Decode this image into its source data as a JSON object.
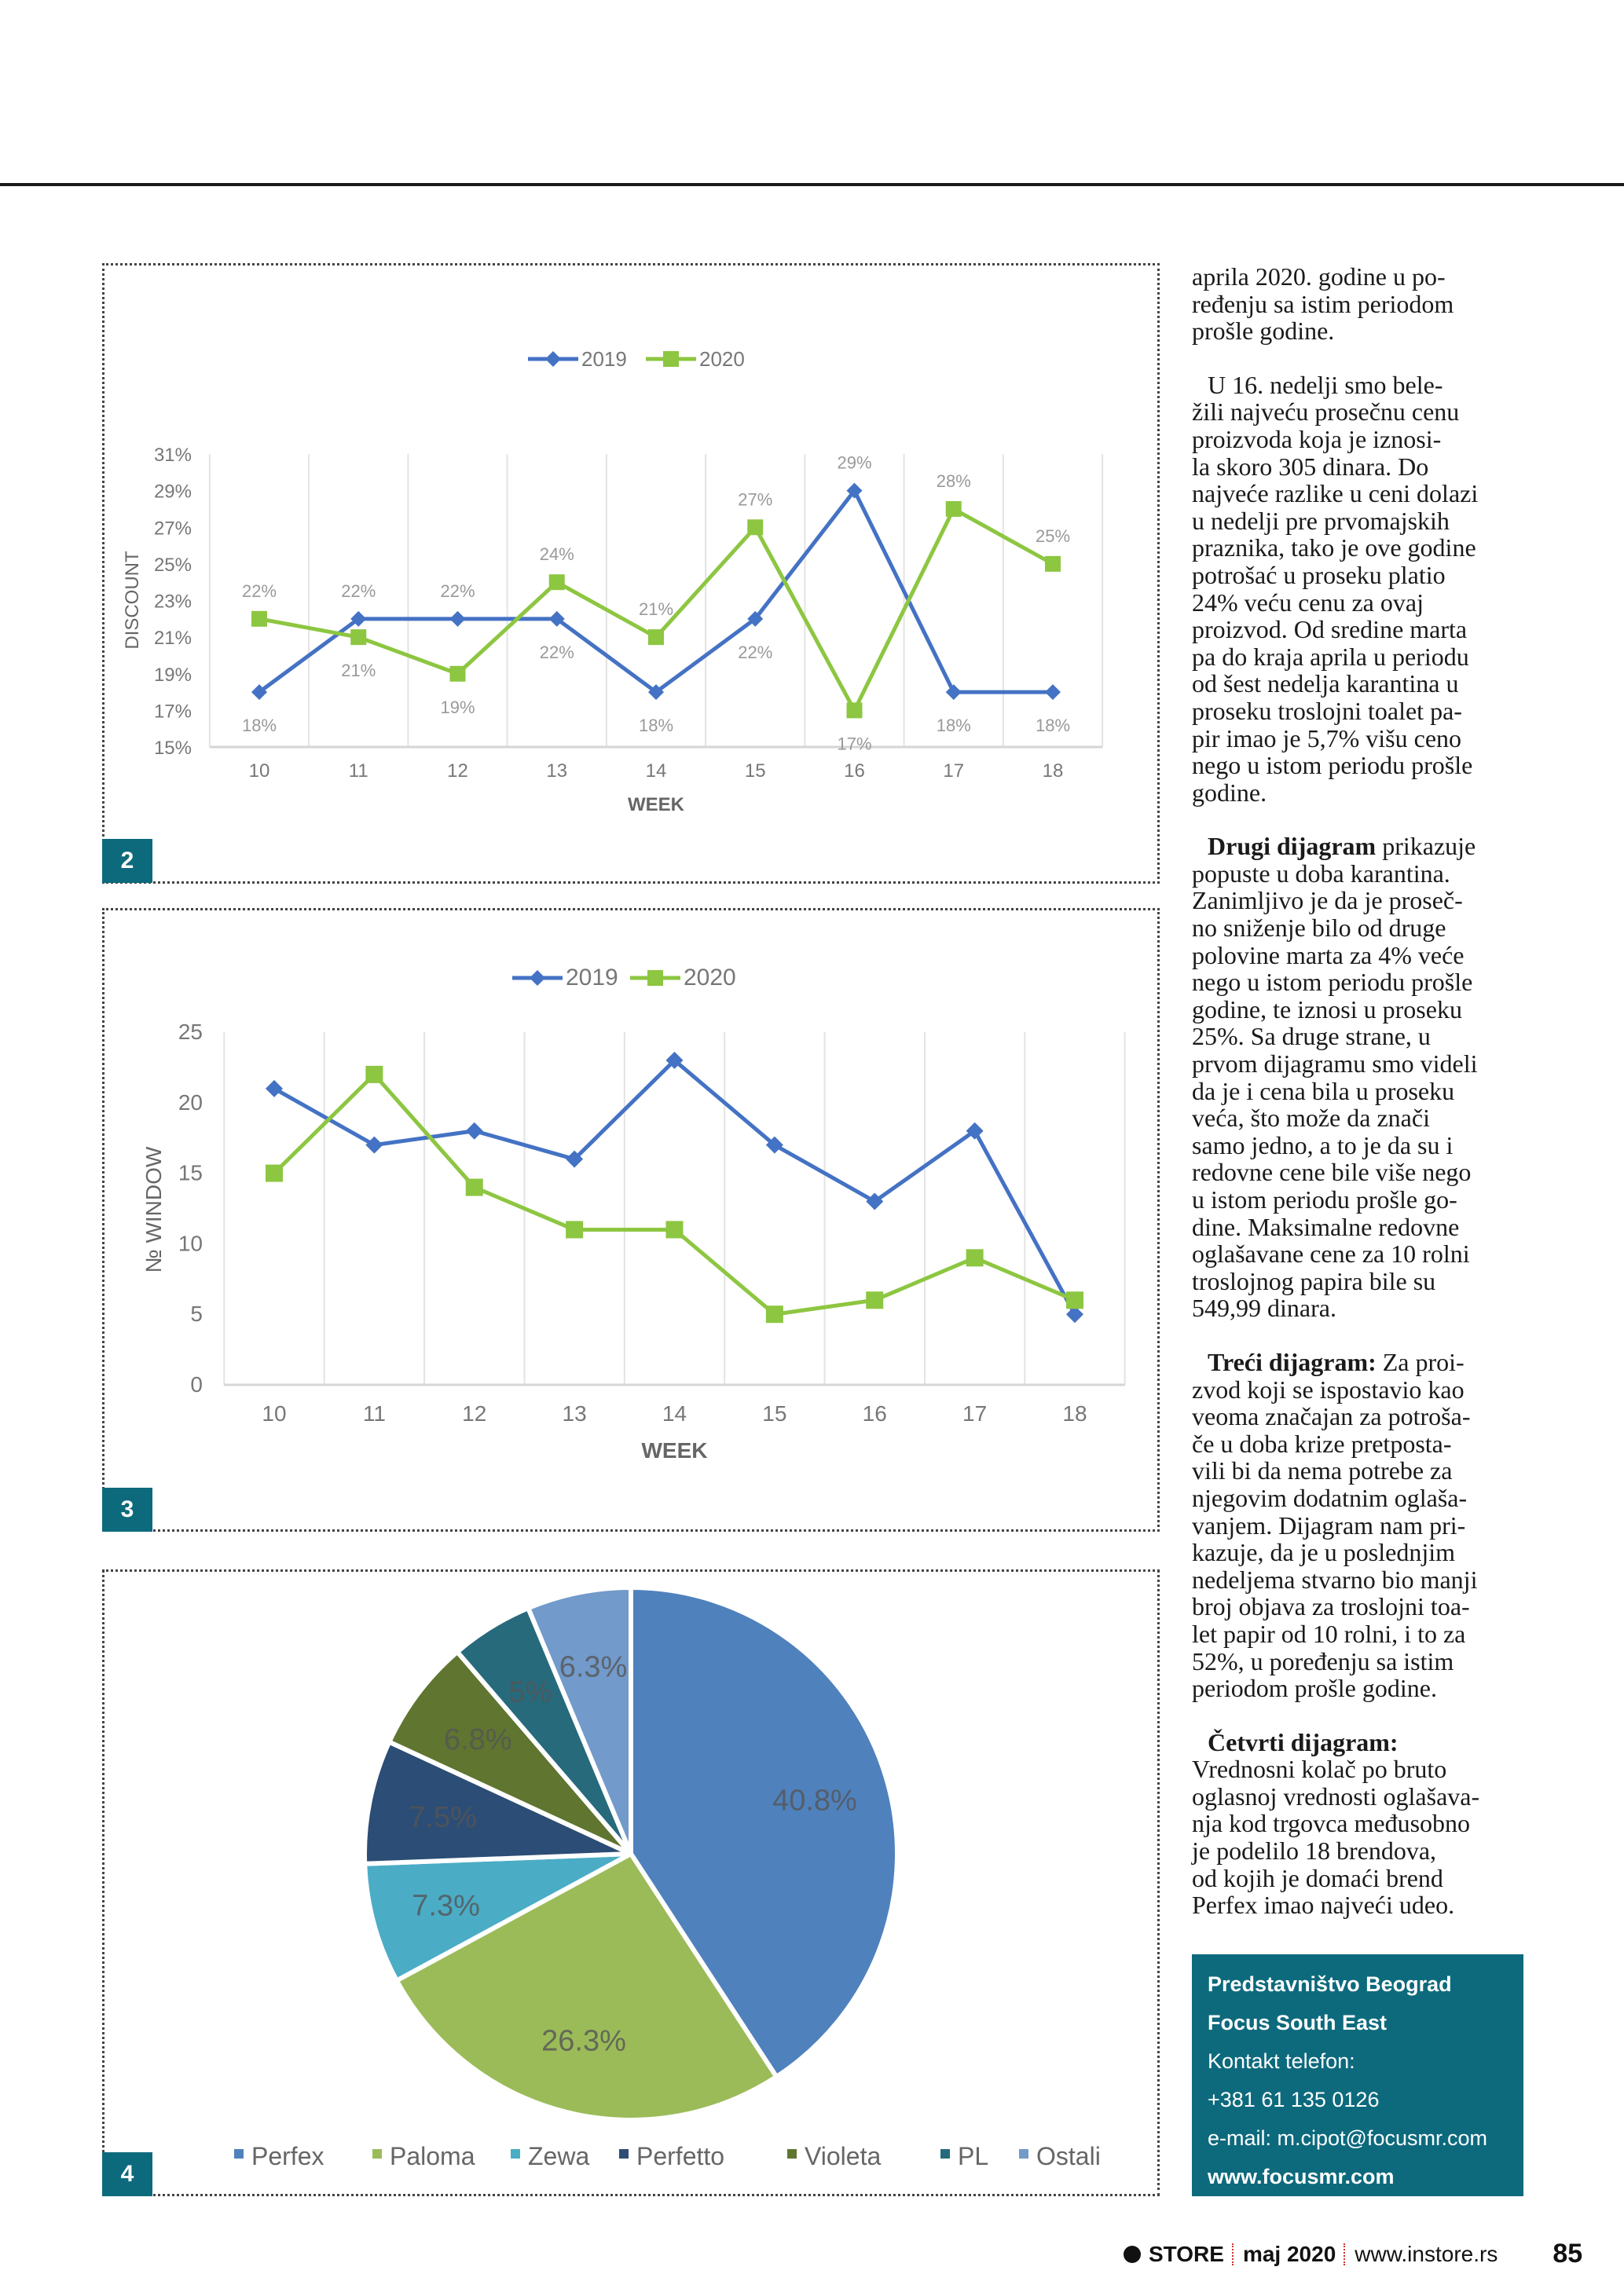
{
  "column": {
    "paragraphs": [
      {
        "lead": "",
        "lines": [
          "aprila 2020. godine u po-",
          "ređenju sa istim periodom",
          "prošle godine."
        ]
      },
      {
        "lead": "",
        "lines": [
          "U 16. nedelji smo bele-",
          "žili najveću prosečnu cenu",
          "proizvoda koja je iznosi-",
          "la skoro 305 dinara. Do",
          "najveće razlike u ceni dolazi",
          "u nedelji pre prvomajskih",
          "praznika, tako je ove godine",
          "potrošać u proseku platio",
          "24% veću cenu za ovaj",
          "proizvod. Od sredine marta",
          "pa do kraja aprila u periodu",
          "od šest nedelja karantina u",
          "proseku troslojni toalet pa-",
          "pir imao je 5,7% višu ceno",
          "nego u istom periodu prošle",
          "godine."
        ]
      },
      {
        "lead": "Drugi dijagram",
        "lines": [
          " prikazuje",
          "popuste u doba karantina.",
          "Zanimljivo je da je proseč-",
          "no sniženje bilo od druge",
          "polovine marta za 4% veće",
          "nego u istom periodu prošle",
          "godine, te iznosi u proseku",
          "25%. Sa druge strane, u",
          "prvom dijagramu smo videli",
          "da je i cena bila u proseku",
          "veća, što može da znači",
          "samo jedno, a to je da su i",
          "redovne cene bile više nego",
          "u istom periodu prošle go-",
          "dine. Maksimalne redovne",
          "oglašavane cene za 10 rolni",
          "troslojnog papira bile su",
          "549,99 dinara."
        ]
      },
      {
        "lead": "Treći dijagram:",
        "lines": [
          " Za proi-",
          "zvod koji se ispostavio kao",
          "veoma značajan za potroša-",
          "če u doba krize pretposta-",
          "vili bi da nema potrebe za",
          "njegovim dodatnim oglaša-",
          "vanjem. Dijagram nam pri-",
          "kazuje, da je u poslednjim",
          "nedeljema stvarno bio manji",
          "broj objava za troslojni toa-",
          "let papir od 10 rolni, i to za",
          "52%, u poređenju sa istim",
          "periodom prošle godine."
        ]
      },
      {
        "lead": "Četvrti dijagram:",
        "lines": [
          "",
          "Vrednosni kolač po bruto",
          "oglasnoj vrednosti oglašava-",
          "nja kod trgovca međusobno",
          "je podelilo 18 brendova,",
          "od kojih je domaći brend",
          "Perfex imao najveći udeo."
        ]
      }
    ]
  },
  "info_box": {
    "title": "Predstavništvo Beograd",
    "company": "Focus South East",
    "phone_label": "Kontakt telefon:",
    "phone": "+381 61 135 0126",
    "email": "e-mail: m.cipot@focusmr.com",
    "website": "www.focusmr.com",
    "color": "#0d6a7d"
  },
  "footer": {
    "logo": "STORE",
    "issue": "maj 2020",
    "url": "www.instore.rs",
    "page": "85"
  },
  "badges": [
    "2",
    "3",
    "4"
  ],
  "colors": {
    "s2019": "#4472c4",
    "s2020": "#8dc641",
    "badge": "#0d6a7d"
  },
  "chart_data": [
    {
      "type": "line",
      "badge": "2",
      "categories": [
        "10",
        "11",
        "12",
        "13",
        "14",
        "15",
        "16",
        "17",
        "18"
      ],
      "xlabel": "WEEK",
      "ylabel": "DISCOUNT",
      "ylim": [
        15,
        31
      ],
      "yticks": [
        "15%",
        "17%",
        "19%",
        "21%",
        "23%",
        "25%",
        "27%",
        "29%",
        "31%"
      ],
      "legend": "top",
      "grid": "vertical",
      "series": [
        {
          "name": "2019",
          "values": [
            18,
            22,
            22,
            22,
            18,
            22,
            29,
            18,
            18
          ],
          "labels": [
            "18%",
            "22%",
            "22%",
            "22%",
            "18%",
            "22%",
            "29%",
            "18%",
            "18%"
          ]
        },
        {
          "name": "2020",
          "values": [
            22,
            21,
            19,
            24,
            21,
            27,
            17,
            28,
            25
          ],
          "labels": [
            "22%",
            "21%",
            "19%",
            "24%",
            "21%",
            "27%",
            "17%",
            "28%",
            "25%"
          ]
        }
      ]
    },
    {
      "type": "line",
      "badge": "3",
      "categories": [
        "10",
        "11",
        "12",
        "13",
        "14",
        "15",
        "16",
        "17",
        "18"
      ],
      "xlabel": "WEEK",
      "ylabel": "№ WINDOW",
      "ylim": [
        0,
        25
      ],
      "yticks": [
        "0",
        "5",
        "10",
        "15",
        "20",
        "25"
      ],
      "legend": "top",
      "grid": "vertical",
      "series": [
        {
          "name": "2019",
          "values": [
            21,
            17,
            18,
            16,
            23,
            17,
            13,
            18,
            5
          ]
        },
        {
          "name": "2020",
          "values": [
            15,
            22,
            14,
            11,
            11,
            5,
            6,
            9,
            6
          ]
        }
      ]
    },
    {
      "type": "pie",
      "badge": "4",
      "legend": "bottom",
      "slices": [
        {
          "name": "Perfex",
          "value": 40.8,
          "label": "40.8%",
          "color": "#4f81bd"
        },
        {
          "name": "Paloma",
          "value": 26.3,
          "label": "26.3%",
          "color": "#9bbb59"
        },
        {
          "name": "Zewa",
          "value": 7.3,
          "label": "7.3%",
          "color": "#4bacc6"
        },
        {
          "name": "Perfetto",
          "value": 7.5,
          "label": "7.5%",
          "color": "#2c4d75"
        },
        {
          "name": "Violeta",
          "value": 6.8,
          "label": "6.8%",
          "color": "#5f7530"
        },
        {
          "name": "PL",
          "value": 5,
          "label": "5%",
          "color": "#276a7c"
        },
        {
          "name": "Ostali",
          "value": 6.3,
          "label": "6.3%",
          "color": "#729aca"
        }
      ]
    }
  ]
}
